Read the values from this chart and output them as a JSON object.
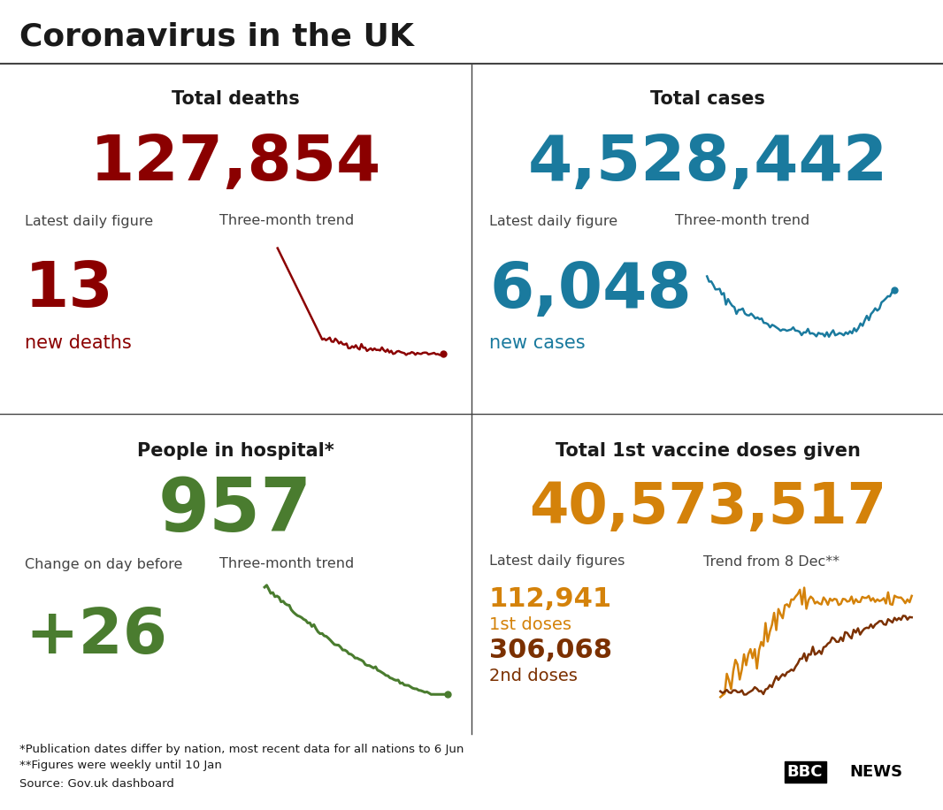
{
  "title": "Coronavirus in the UK",
  "bg_color": "#ffffff",
  "title_color": "#1a1a1a",
  "divider_color": "#444444",
  "deaths_label": "Total deaths",
  "deaths_total": "127,854",
  "deaths_total_color": "#8b0000",
  "deaths_daily_label": "Latest daily figure",
  "deaths_daily_value": "13",
  "deaths_daily_sublabel": "new deaths",
  "deaths_daily_color": "#8b0000",
  "deaths_trend_label": "Three-month trend",
  "cases_label": "Total cases",
  "cases_total": "4,528,442",
  "cases_total_color": "#1a7a9e",
  "cases_daily_label": "Latest daily figure",
  "cases_daily_value": "6,048",
  "cases_daily_sublabel": "new cases",
  "cases_daily_color": "#1a7a9e",
  "cases_trend_label": "Three-month trend",
  "hospital_label": "People in hospital*",
  "hospital_total": "957",
  "hospital_total_color": "#4a7c2f",
  "hospital_change_label": "Change on day before",
  "hospital_change_value": "+26",
  "hospital_change_color": "#4a7c2f",
  "hospital_trend_label": "Three-month trend",
  "vaccine_label": "Total 1st vaccine doses given",
  "vaccine_total": "40,573,517",
  "vaccine_total_color": "#d4820a",
  "vaccine_daily_label": "Latest daily figures",
  "vaccine_1st_value": "112,941",
  "vaccine_1st_sublabel": "1st doses",
  "vaccine_1st_color": "#d4820a",
  "vaccine_2nd_value": "306,068",
  "vaccine_2nd_sublabel": "2nd doses",
  "vaccine_2nd_color": "#7b3000",
  "vaccine_trend_label": "Trend from 8 Dec**",
  "footnote1": "*Publication dates differ by nation, most recent data for all nations to 6 Jun",
  "footnote2": "**Figures were weekly until 10 Jan",
  "footnote3": "Source: Gov.uk dashboard",
  "text_color": "#1a1a1a",
  "label_color": "#444444"
}
